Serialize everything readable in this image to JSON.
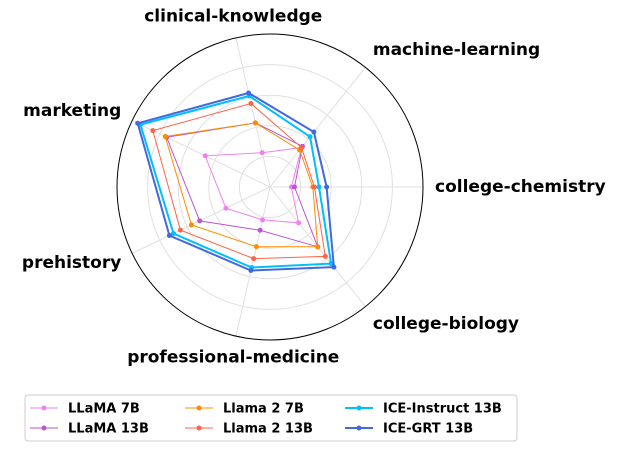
{
  "chart_data": {
    "type": "radar",
    "categories": [
      "college-chemistry",
      "machine-learning",
      "clinical-knowledge",
      "marketing",
      "prehistory",
      "professional-medicine",
      "college-biology"
    ],
    "rlim": [
      0,
      1
    ],
    "rticks": [
      0.2,
      0.4,
      0.6,
      0.8
    ],
    "grid": true,
    "legend": "lower center",
    "series": [
      {
        "name": "LLaMA 7B",
        "color": "#ee82ee",
        "values": [
          0.14,
          0.33,
          0.23,
          0.47,
          0.32,
          0.22,
          0.3
        ]
      },
      {
        "name": "LLaMA 13B",
        "color": "#ba55d3",
        "values": [
          0.16,
          0.34,
          0.43,
          0.75,
          0.51,
          0.29,
          0.5
        ]
      },
      {
        "name": "Llama 2 7B",
        "color": "#ff8c00",
        "values": [
          0.28,
          0.31,
          0.43,
          0.76,
          0.57,
          0.4,
          0.5
        ]
      },
      {
        "name": "Llama 2 13B",
        "color": "#ff6347",
        "values": [
          0.29,
          0.33,
          0.56,
          0.85,
          0.65,
          0.48,
          0.58
        ]
      },
      {
        "name": "ICE-Instruct 13B",
        "color": "#00bfff",
        "values": [
          0.32,
          0.42,
          0.61,
          0.94,
          0.7,
          0.54,
          0.64
        ]
      },
      {
        "name": "ICE-GRT 13B",
        "color": "#4169e1",
        "values": [
          0.37,
          0.46,
          0.63,
          0.96,
          0.73,
          0.56,
          0.67
        ]
      }
    ]
  }
}
